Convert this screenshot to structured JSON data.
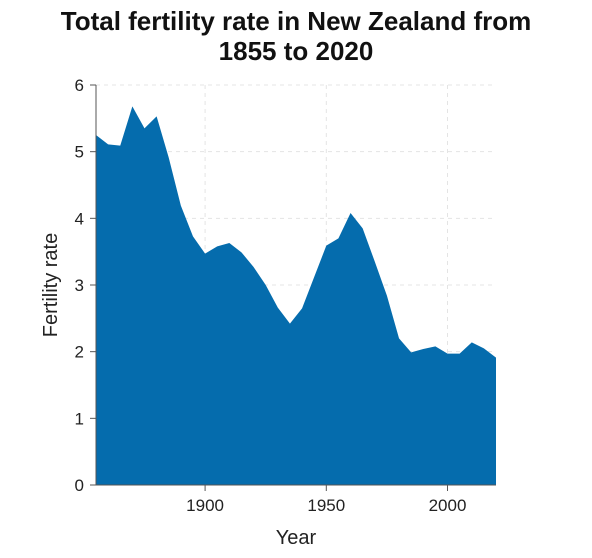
{
  "chart_data": {
    "type": "area",
    "title_line1": "Total fertility rate in New Zealand from",
    "title_line2": "1855 to 2020",
    "xlabel": "Year",
    "ylabel": "Fertility rate",
    "xlim": [
      1855,
      2020
    ],
    "ylim": [
      0,
      6
    ],
    "x_ticks": [
      1900,
      1950,
      2000
    ],
    "x_tick_labels": [
      "1900",
      "1950",
      "2000"
    ],
    "y_ticks": [
      0,
      1,
      2,
      3,
      4,
      5,
      6
    ],
    "y_tick_labels": [
      "0",
      "1",
      "2",
      "3",
      "4",
      "5",
      "6"
    ],
    "grid": true,
    "series": [
      {
        "x": [
          1855,
          1860,
          1865,
          1870,
          1875,
          1880,
          1885,
          1890,
          1895,
          1900,
          1905,
          1910,
          1915,
          1920,
          1925,
          1930,
          1935,
          1940,
          1945,
          1950,
          1955,
          1960,
          1965,
          1970,
          1975,
          1980,
          1985,
          1990,
          1995,
          2000,
          2005,
          2010,
          2015,
          2020
        ],
        "y": [
          5.25,
          5.11,
          5.09,
          5.68,
          5.35,
          5.53,
          4.91,
          4.19,
          3.73,
          3.47,
          3.58,
          3.63,
          3.49,
          3.27,
          3.0,
          2.66,
          2.42,
          2.65,
          3.12,
          3.59,
          3.7,
          4.08,
          3.85,
          3.35,
          2.84,
          2.2,
          1.99,
          2.04,
          2.08,
          1.97,
          1.97,
          2.14,
          2.05,
          1.91
        ]
      }
    ],
    "fill_color": "#056cad",
    "grid_color": "#e4e4e4",
    "axis_color": "#555555"
  }
}
